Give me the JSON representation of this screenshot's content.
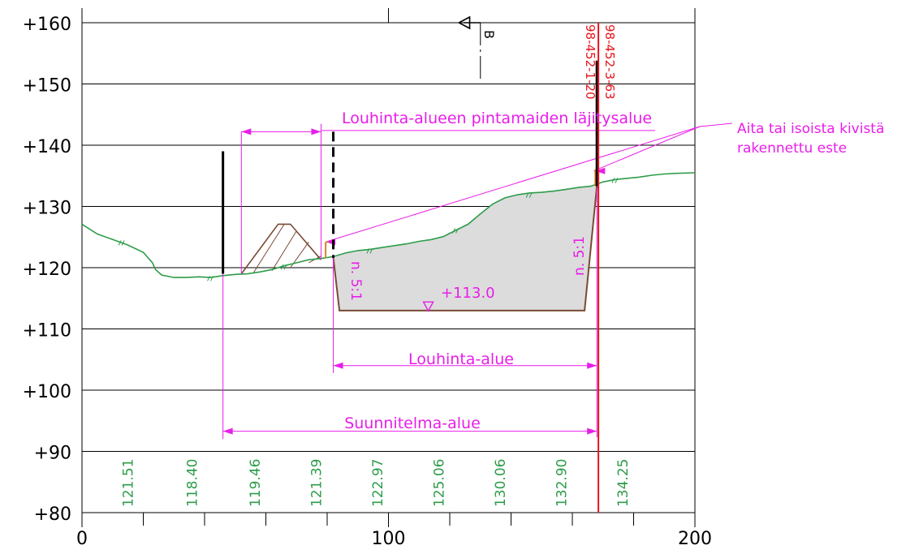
{
  "chart_data": {
    "type": "cross-section",
    "x_axis": {
      "range": [
        0,
        200
      ],
      "tick_labels": [
        "0",
        "100",
        "200"
      ]
    },
    "y_axis": {
      "range": [
        80,
        160
      ],
      "tick_labels": [
        "+160",
        "+150",
        "+140",
        "+130",
        "+120",
        "+110",
        "+100",
        "+90",
        "+80"
      ]
    },
    "grid": true,
    "ground_profile": {
      "color": "#2e9c4a",
      "points": [
        [
          0,
          127.1
        ],
        [
          5,
          125.5
        ],
        [
          10,
          124.6
        ],
        [
          15,
          123.7
        ],
        [
          20,
          122.5
        ],
        [
          23,
          120.8
        ],
        [
          24,
          119.7
        ],
        [
          26,
          118.8
        ],
        [
          30,
          118.4
        ],
        [
          34,
          118.4
        ],
        [
          38,
          118.5
        ],
        [
          42,
          118.4
        ],
        [
          46,
          118.7
        ],
        [
          50,
          118.9
        ],
        [
          54,
          119.0
        ],
        [
          58,
          119.3
        ],
        [
          62,
          119.7
        ],
        [
          66,
          120.3
        ],
        [
          70,
          120.8
        ],
        [
          74,
          121.3
        ],
        [
          78,
          121.5
        ],
        [
          82,
          121.8
        ],
        [
          86,
          122.4
        ],
        [
          90,
          122.8
        ],
        [
          94,
          123.0
        ],
        [
          98,
          123.3
        ],
        [
          102,
          123.6
        ],
        [
          106,
          123.9
        ],
        [
          110,
          124.3
        ],
        [
          114,
          124.6
        ],
        [
          118,
          125.1
        ],
        [
          122,
          126.1
        ],
        [
          126,
          127.1
        ],
        [
          130,
          128.8
        ],
        [
          134,
          130.4
        ],
        [
          138,
          131.4
        ],
        [
          142,
          131.9
        ],
        [
          146,
          132.2
        ],
        [
          150,
          132.3
        ],
        [
          154,
          132.5
        ],
        [
          158,
          132.8
        ],
        [
          162,
          133.1
        ],
        [
          166,
          133.3
        ],
        [
          170,
          134.0
        ],
        [
          174,
          134.4
        ],
        [
          178,
          134.6
        ],
        [
          182,
          134.8
        ],
        [
          186,
          135.1
        ],
        [
          190,
          135.3
        ],
        [
          194,
          135.4
        ],
        [
          200,
          135.5
        ]
      ]
    },
    "excavation": {
      "level_label": "+113.0",
      "slope_labels": [
        "n. 5:1",
        "n. 5:1"
      ],
      "polygon": [
        [
          82,
          121.6
        ],
        [
          84,
          113.0
        ],
        [
          164,
          113.0
        ],
        [
          168,
          133.3
        ]
      ]
    },
    "stockpile": {
      "polygon": [
        [
          52,
          119.0
        ],
        [
          64,
          127.1
        ],
        [
          68,
          127.1
        ],
        [
          78,
          121.3
        ]
      ]
    },
    "station_values": [
      "121.51",
      "118.40",
      "119.46",
      "121.39",
      "122.97",
      "125.06",
      "130.06",
      "132.90",
      "134.25"
    ],
    "station_x": [
      16.5,
      37.5,
      58,
      78,
      98,
      118,
      138,
      158,
      178
    ],
    "boundary_ids": [
      "98-452-1-20",
      "98-452-3-63"
    ],
    "section_marker": "B",
    "dimensions": [
      {
        "label": "Louhinta-alueen pintamaiden läjitysalue",
        "from": 52,
        "to": 78,
        "y": 142.2
      },
      {
        "label": "Louhinta-alue",
        "from": 82,
        "to": 168,
        "y": 104
      },
      {
        "label": "Suunnitelma-alue",
        "from": 46,
        "to": 168,
        "y": 93.3
      }
    ],
    "annotation": {
      "lines": [
        "Aita tai isoista kivistä",
        "rakennettu este"
      ]
    },
    "colors": {
      "ground": "#2e9c4a",
      "dimension": "#e91de9",
      "boundary": "#e8141c",
      "excavation_fill": "#dcdcdc",
      "cut_line": "#7a4a36",
      "fence": "#d08a2a"
    }
  }
}
